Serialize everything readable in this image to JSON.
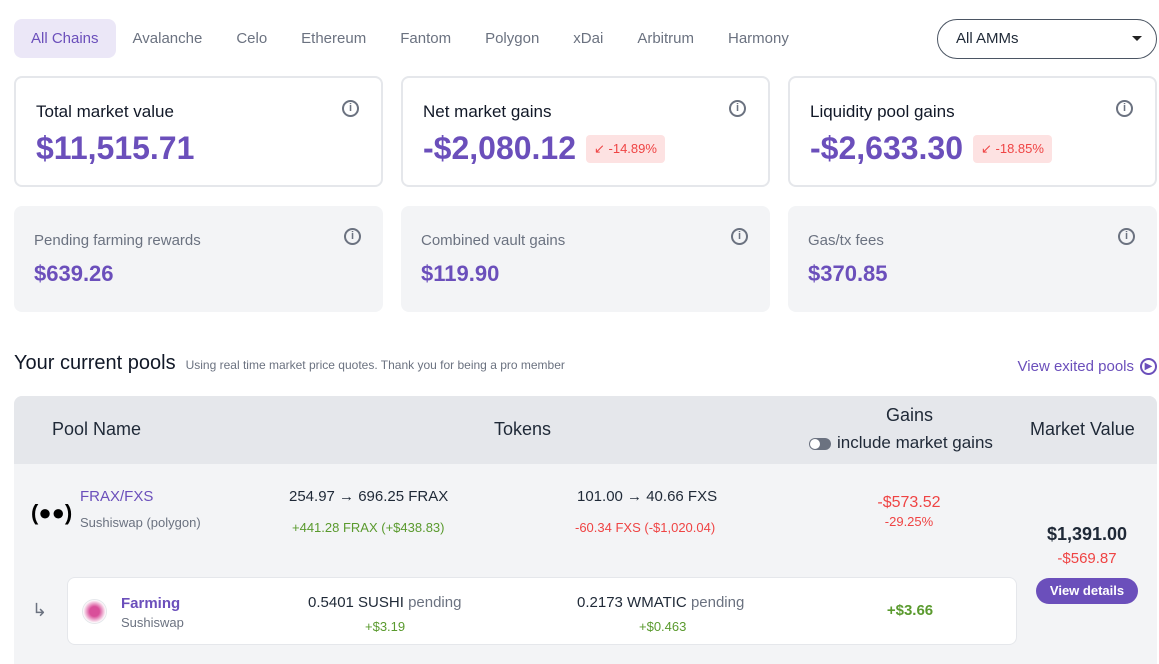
{
  "tabs": [
    "All Chains",
    "Avalanche",
    "Celo",
    "Ethereum",
    "Fantom",
    "Polygon",
    "xDai",
    "Arbitrum",
    "Harmony"
  ],
  "amm_select": "All AMMs",
  "cards": [
    {
      "label": "Total market value",
      "value": "$11,515.71"
    },
    {
      "label": "Net market gains",
      "value": "-$2,080.12",
      "badge": "↙ -14.89%"
    },
    {
      "label": "Liquidity pool gains",
      "value": "-$2,633.30",
      "badge": "↙ -18.85%"
    },
    {
      "label": "Pending farming rewards",
      "value": "$639.26"
    },
    {
      "label": "Combined vault gains",
      "value": "$119.90"
    },
    {
      "label": "Gas/tx fees",
      "value": "$370.85"
    }
  ],
  "section": {
    "title": "Your current pools",
    "subtitle": "Using real time market price quotes. Thank you for being a pro member",
    "exited_link": "View exited pools"
  },
  "table": {
    "headers": {
      "pool": "Pool Name",
      "tokens": "Tokens",
      "gains": "Gains",
      "toggle": "include market gains",
      "market": "Market Value"
    },
    "row": {
      "name": "FRAX/FXS",
      "platform": "Sushiswap (polygon)",
      "token1": "254.97 → 696.25 FRAX",
      "token1_delta": "+441.28 FRAX (+$438.83)",
      "token2": "101.00 → 40.66 FXS",
      "token2_delta": "-60.34 FXS (-$1,020.04)",
      "gain": "-$573.52",
      "gain_pct": "-29.25%",
      "market_value": "$1,391.00",
      "market_delta": "-$569.87",
      "button": "View details"
    },
    "farming": {
      "name": "Farming",
      "platform": "Sushiswap",
      "reward1": "0.5401 SUSHI",
      "reward1_usd": "+$3.19",
      "reward2": "0.2173 WMATIC",
      "reward2_usd": "+$0.463",
      "pending": "pending",
      "total": "+$3.66"
    }
  }
}
